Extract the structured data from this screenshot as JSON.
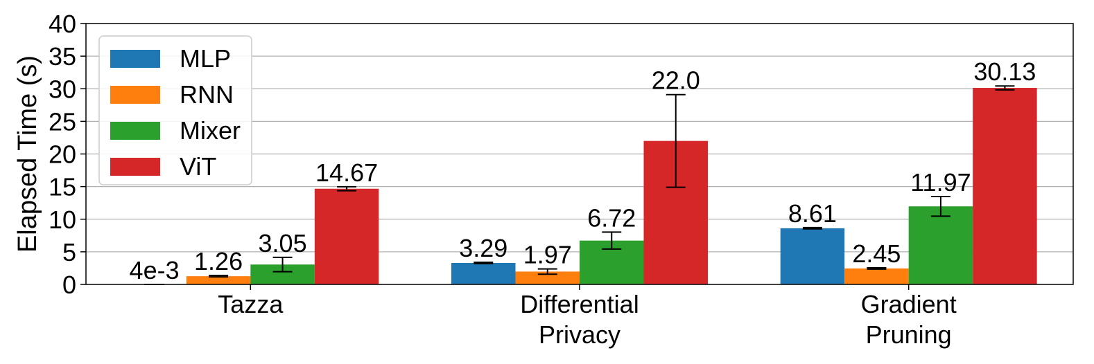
{
  "chart_data": {
    "type": "bar",
    "categories": [
      [
        "Tazza"
      ],
      [
        "Differential",
        "Privacy"
      ],
      [
        "Gradient",
        "Pruning"
      ]
    ],
    "series": [
      {
        "name": "MLP",
        "color": "#1f77b4",
        "values": [
          0.004,
          3.29,
          8.61
        ],
        "labels": [
          "4e-3",
          "3.29",
          "8.61"
        ],
        "errors": [
          0.0,
          0.1,
          0.1
        ]
      },
      {
        "name": "RNN",
        "color": "#ff7f0e",
        "values": [
          1.26,
          1.97,
          2.45
        ],
        "labels": [
          "1.26",
          "1.97",
          "2.45"
        ],
        "errors": [
          0.1,
          0.4,
          0.1
        ]
      },
      {
        "name": "Mixer",
        "color": "#2ca02c",
        "values": [
          3.05,
          6.72,
          11.97
        ],
        "labels": [
          "3.05",
          "6.72",
          "11.97"
        ],
        "errors": [
          1.1,
          1.3,
          1.5
        ]
      },
      {
        "name": "ViT",
        "color": "#d62728",
        "values": [
          14.67,
          22.0,
          30.13
        ],
        "labels": [
          "14.67",
          "22.0",
          "30.13"
        ],
        "errors": [
          0.3,
          7.1,
          0.3
        ]
      }
    ],
    "ylabel": "Elapsed Time (s)",
    "xlabel": "",
    "ylim": [
      0,
      40
    ],
    "yticks": [
      0,
      5,
      10,
      15,
      20,
      25,
      30,
      35,
      40
    ],
    "grid": "y",
    "legend": "top-left"
  }
}
